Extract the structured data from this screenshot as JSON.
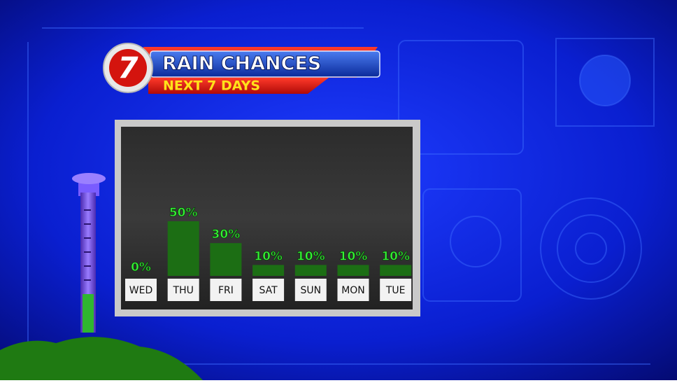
{
  "logo": "7",
  "chart_data": {
    "type": "bar",
    "title": "RAIN CHANCES",
    "subtitle": "NEXT 7 DAYS",
    "categories": [
      "WED",
      "THU",
      "FRI",
      "SAT",
      "SUN",
      "MON",
      "TUE"
    ],
    "values": [
      0,
      50,
      30,
      10,
      10,
      10,
      10
    ],
    "value_labels": [
      "0%",
      "50%",
      "30%",
      "10%",
      "10%",
      "10%",
      "10%"
    ],
    "color": "#1c6e14"
  }
}
